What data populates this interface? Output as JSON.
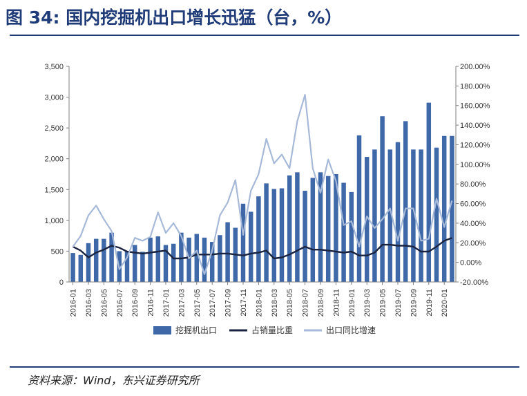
{
  "figure": {
    "title": "图 34: 国内挖掘机出口增长迅猛（台，%）",
    "source": "资料来源：Wind，东兴证券研究所"
  },
  "chart_data": {
    "type": "bar+line",
    "title": "",
    "xlabel": "",
    "ylabel": "",
    "ylim": [
      0,
      3500
    ],
    "y2lim": [
      -20,
      200
    ],
    "y_ticks": [
      "0",
      "500",
      "1,000",
      "1,500",
      "2,000",
      "2,500",
      "3,000",
      "3,500"
    ],
    "y2_ticks": [
      "-20.00%",
      "0.00%",
      "20.00%",
      "40.00%",
      "60.00%",
      "80.00%",
      "100.00%",
      "120.00%",
      "140.00%",
      "160.00%",
      "180.00%",
      "200.00%"
    ],
    "x_tick_labels": [
      "2016-01",
      "2016-03",
      "2016-05",
      "2016-07",
      "2016-09",
      "2016-11",
      "2017-01",
      "2017-03",
      "2017-05",
      "2017-07",
      "2017-09",
      "2017-11",
      "2018-01",
      "2018-03",
      "2018-05",
      "2018-07",
      "2018-09",
      "2018-11",
      "2019-01",
      "2019-03",
      "2019-05",
      "2019-07",
      "2019-09",
      "2019-11",
      "2020-01"
    ],
    "categories": [
      "2016-01",
      "2016-02",
      "2016-03",
      "2016-04",
      "2016-05",
      "2016-06",
      "2016-07",
      "2016-08",
      "2016-09",
      "2016-10",
      "2016-11",
      "2016-12",
      "2017-01",
      "2017-02",
      "2017-03",
      "2017-04",
      "2017-05",
      "2017-06",
      "2017-07",
      "2017-08",
      "2017-09",
      "2017-10",
      "2017-11",
      "2017-12",
      "2018-01",
      "2018-02",
      "2018-03",
      "2018-04",
      "2018-05",
      "2018-06",
      "2018-07",
      "2018-08",
      "2018-09",
      "2018-10",
      "2018-11",
      "2018-12",
      "2019-01",
      "2019-02",
      "2019-03",
      "2019-04",
      "2019-05",
      "2019-06",
      "2019-07",
      "2019-08",
      "2019-09",
      "2019-10",
      "2019-11",
      "2019-12",
      "2020-01",
      "2020-02"
    ],
    "series": [
      {
        "name": "挖掘机出口",
        "type": "bar",
        "axis": "left",
        "color": "#3f68a8",
        "values": [
          470,
          440,
          630,
          700,
          700,
          800,
          500,
          500,
          600,
          490,
          720,
          740,
          600,
          620,
          800,
          720,
          780,
          720,
          650,
          760,
          970,
          880,
          1270,
          1140,
          1390,
          1600,
          1510,
          1520,
          1730,
          1780,
          1480,
          1690,
          1780,
          1720,
          1750,
          1610,
          1460,
          2380,
          2030,
          2150,
          2690,
          2150,
          2270,
          2610,
          2150,
          2150,
          2910,
          2180,
          2370,
          2370
        ]
      },
      {
        "name": "占销量比重",
        "type": "line",
        "axis": "right",
        "color": "#1a2440",
        "values": [
          16,
          12,
          5,
          10,
          13,
          17,
          15,
          11,
          10,
          9,
          10,
          11,
          12,
          4,
          4,
          5,
          8,
          8,
          8,
          9,
          9,
          8,
          7,
          9,
          10,
          12,
          4,
          5,
          8,
          12,
          16,
          13,
          13,
          12,
          11,
          10,
          11,
          7,
          7,
          10,
          18,
          18,
          17,
          17,
          16,
          11,
          11,
          16,
          22,
          25
        ]
      },
      {
        "name": "出口同比增速",
        "type": "line",
        "axis": "right",
        "color": "#a7b9d8",
        "values": [
          16,
          27,
          48,
          58,
          44,
          32,
          -7,
          5,
          25,
          22,
          26,
          51,
          30,
          40,
          27,
          4,
          12,
          -12,
          12,
          48,
          61,
          84,
          28,
          73,
          90,
          126,
          101,
          110,
          96,
          144,
          171,
          96,
          71,
          105,
          83,
          38,
          42,
          16,
          47,
          35,
          44,
          55,
          22,
          55,
          55,
          22,
          24,
          65,
          36,
          63
        ]
      }
    ],
    "legend": {
      "placement": "bottom",
      "entries": [
        "挖掘机出口",
        "占销量比重",
        "出口同比增速"
      ]
    },
    "grid": false
  }
}
